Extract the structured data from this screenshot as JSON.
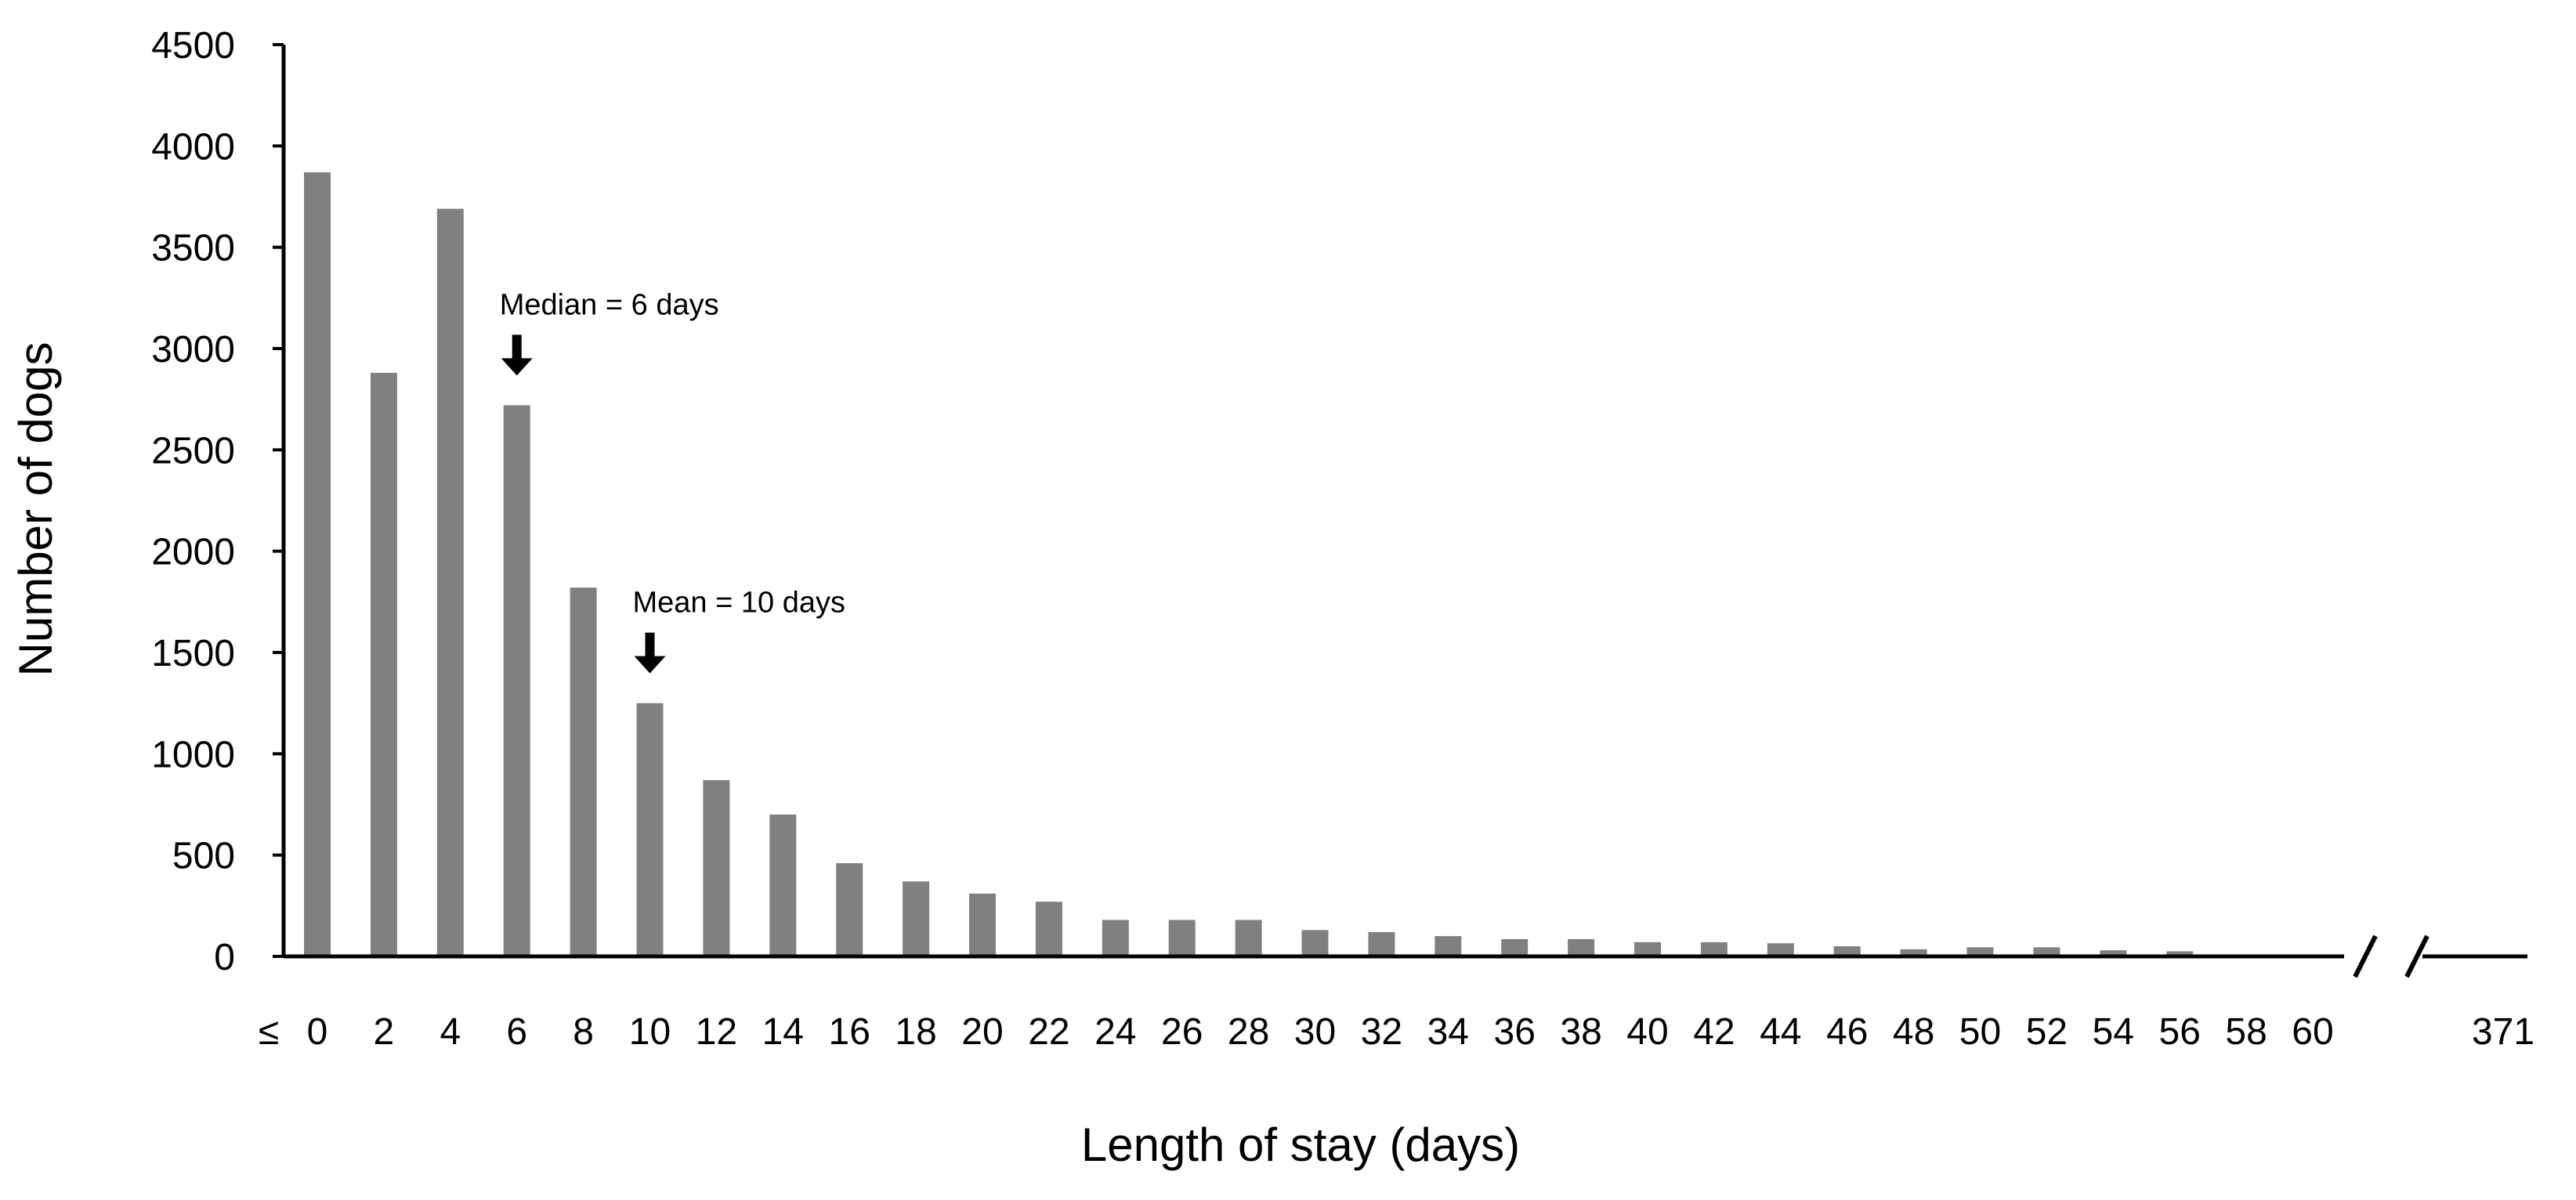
{
  "chart_data": {
    "type": "bar",
    "xlabel": "Length of stay (days)",
    "ylabel": "Number of dogs",
    "ylim": [
      0,
      4500
    ],
    "yticks": [
      0,
      500,
      1000,
      1500,
      2000,
      2500,
      3000,
      3500,
      4000,
      4500
    ],
    "grid": false,
    "legend": false,
    "axis_break": "between 60 and 371",
    "categories": [
      "0",
      "2",
      "4",
      "6",
      "8",
      "10",
      "12",
      "14",
      "16",
      "18",
      "20",
      "22",
      "24",
      "26",
      "28",
      "30",
      "32",
      "34",
      "36",
      "38",
      "40",
      "42",
      "44",
      "46",
      "48",
      "50",
      "52",
      "54",
      "56",
      "58",
      "60",
      "371"
    ],
    "values": [
      3870,
      2880,
      3690,
      2720,
      1820,
      1250,
      870,
      700,
      460,
      370,
      310,
      270,
      180,
      180,
      180,
      130,
      120,
      100,
      85,
      85,
      70,
      70,
      65,
      50,
      35,
      45,
      45,
      30,
      25,
      0,
      0,
      0
    ],
    "first_tick_prefix": "≤",
    "bar_color": "#808080",
    "annotations": [
      {
        "text": "Median = 6 days",
        "category": "6"
      },
      {
        "text": "Mean = 10 days",
        "category": "10"
      }
    ]
  }
}
